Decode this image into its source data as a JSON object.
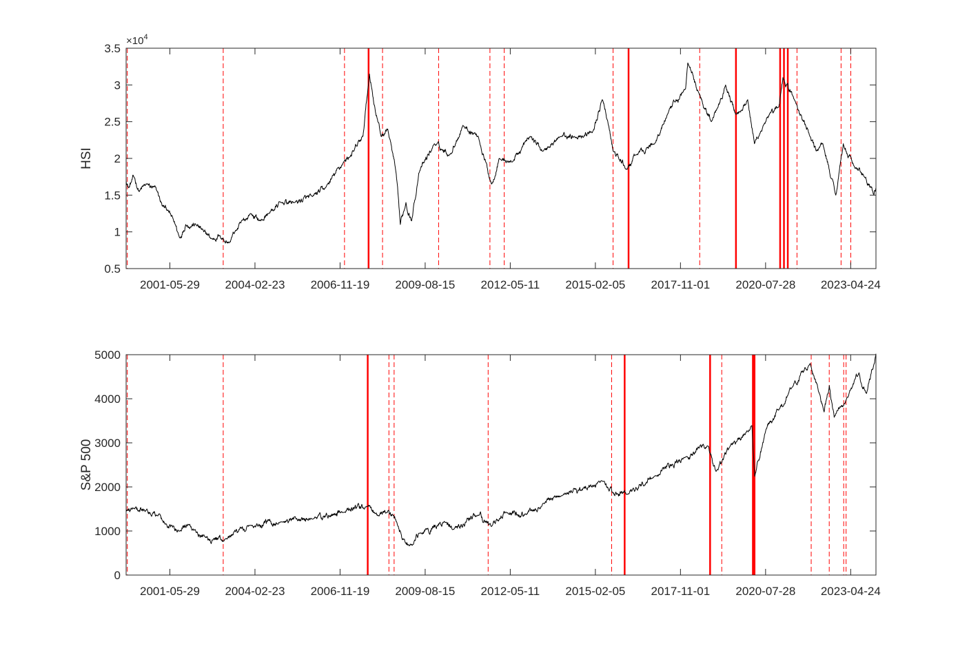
{
  "chart_data": [
    {
      "type": "line",
      "ylabel": "HSI",
      "xlabel": "",
      "title": "",
      "y_exponent_label": "×10",
      "y_exponent_power": "4",
      "ylim": [
        0.5,
        3.5
      ],
      "yticks": [
        "0.5",
        "1",
        "1.5",
        "2",
        "2.5",
        "3",
        "3.5"
      ],
      "ytick_values": [
        0.5,
        1,
        1.5,
        2,
        2.5,
        3,
        3.5
      ],
      "xlim": [
        "2000-01-01",
        "2024-02-15"
      ],
      "xticks": [
        "2001-05-29",
        "2004-02-23",
        "2006-11-19",
        "2009-08-15",
        "2012-05-11",
        "2015-02-05",
        "2017-11-01",
        "2020-07-28",
        "2023-04-24"
      ],
      "grid": false,
      "line_color": "#000000",
      "changepoint_color": "#ff0000",
      "series": [
        {
          "x": [
            "2000-01-01",
            "2000-02-01",
            "2000-04-01",
            "2000-06-01",
            "2000-09-01",
            "2001-01-01",
            "2001-03-01",
            "2001-05-01",
            "2001-08-01",
            "2001-09-20",
            "2001-12-01",
            "2002-04-01",
            "2002-07-01",
            "2002-10-10",
            "2003-01-01",
            "2003-04-25",
            "2003-07-01",
            "2003-12-31",
            "2004-05-01",
            "2004-08-01",
            "2004-12-31",
            "2005-06-01",
            "2005-12-31",
            "2006-06-01",
            "2006-12-31",
            "2007-05-01",
            "2007-08-15",
            "2007-10-30",
            "2008-01-01",
            "2008-03-15",
            "2008-06-01",
            "2008-09-01",
            "2008-10-27",
            "2009-01-01",
            "2009-03-09",
            "2009-06-01",
            "2009-12-01",
            "2010-06-01",
            "2010-11-01",
            "2011-05-01",
            "2011-10-04",
            "2012-01-01",
            "2012-06-01",
            "2013-01-01",
            "2013-06-01",
            "2014-01-01",
            "2014-06-01",
            "2014-12-31",
            "2015-04-28",
            "2015-07-01",
            "2015-09-01",
            "2016-02-12",
            "2016-06-01",
            "2016-12-31",
            "2017-06-01",
            "2017-12-31",
            "2018-01-26",
            "2018-06-01",
            "2018-10-30",
            "2019-04-15",
            "2019-08-15",
            "2019-12-31",
            "2020-03-19",
            "2020-07-01",
            "2020-12-31",
            "2021-02-17",
            "2021-07-01",
            "2021-12-31",
            "2022-03-15",
            "2022-06-01",
            "2022-10-31",
            "2023-01-27",
            "2023-06-01",
            "2023-10-01",
            "2024-01-22",
            "2024-02-15"
          ],
          "values": [
            1.7,
            1.6,
            1.75,
            1.55,
            1.65,
            1.55,
            1.35,
            1.3,
            1.1,
            0.92,
            1.1,
            1.1,
            1.0,
            0.9,
            0.95,
            0.85,
            1.0,
            1.25,
            1.15,
            1.25,
            1.4,
            1.4,
            1.48,
            1.6,
            1.95,
            2.1,
            2.3,
            3.15,
            2.7,
            2.3,
            2.4,
            1.85,
            1.1,
            1.4,
            1.15,
            1.8,
            2.2,
            2.05,
            2.45,
            2.3,
            1.65,
            2.0,
            1.95,
            2.3,
            2.1,
            2.3,
            2.3,
            2.35,
            2.8,
            2.5,
            2.1,
            1.85,
            2.05,
            2.2,
            2.6,
            2.95,
            3.3,
            2.9,
            2.5,
            3.0,
            2.6,
            2.8,
            2.2,
            2.45,
            2.7,
            3.1,
            2.8,
            2.3,
            2.1,
            2.2,
            1.5,
            2.2,
            1.9,
            1.75,
            1.5,
            1.6
          ]
        }
      ],
      "changepoints_dashed": [
        "2000-01-15",
        "2003-02-15",
        "2007-01-10",
        "2008-04-01",
        "2010-01-20",
        "2011-09-15",
        "2012-03-01",
        "2015-09-01",
        "2018-06-15",
        "2021-08-01",
        "2023-01-01",
        "2023-04-25"
      ],
      "changepoints_solid": [
        "2007-10-20",
        "2016-03-01",
        "2019-08-15",
        "2021-01-15",
        "2021-03-01",
        "2021-04-15"
      ]
    },
    {
      "type": "line",
      "ylabel": "S&P 500",
      "xlabel": "",
      "title": "",
      "ylim": [
        0,
        5000
      ],
      "yticks": [
        "0",
        "1000",
        "2000",
        "3000",
        "4000",
        "5000"
      ],
      "ytick_values": [
        0,
        1000,
        2000,
        3000,
        4000,
        5000
      ],
      "xlim": [
        "2000-01-01",
        "2024-02-15"
      ],
      "xticks": [
        "2001-05-29",
        "2004-02-23",
        "2006-11-19",
        "2009-08-15",
        "2012-05-11",
        "2015-02-05",
        "2017-11-01",
        "2020-07-28",
        "2023-04-24"
      ],
      "grid": false,
      "line_color": "#000000",
      "changepoint_color": "#ff0000",
      "series": [
        {
          "x": [
            "2000-01-01",
            "2000-03-24",
            "2000-09-01",
            "2001-01-01",
            "2001-04-04",
            "2001-09-21",
            "2002-01-01",
            "2002-07-23",
            "2002-10-09",
            "2003-03-11",
            "2004-01-01",
            "2005-01-01",
            "2006-01-01",
            "2007-01-01",
            "2007-10-09",
            "2008-01-01",
            "2008-05-19",
            "2008-09-15",
            "2008-11-20",
            "2009-03-09",
            "2009-06-01",
            "2010-04-23",
            "2010-07-02",
            "2011-04-29",
            "2011-10-03",
            "2012-04-01",
            "2012-11-15",
            "2013-06-01",
            "2014-01-01",
            "2015-05-21",
            "2015-08-25",
            "2016-02-11",
            "2016-12-31",
            "2017-12-31",
            "2018-09-20",
            "2018-12-24",
            "2019-06-01",
            "2020-02-19",
            "2020-03-23",
            "2020-08-01",
            "2021-01-01",
            "2021-06-01",
            "2022-01-03",
            "2022-06-16",
            "2022-08-16",
            "2022-10-12",
            "2023-03-01",
            "2023-07-31",
            "2023-10-27",
            "2024-02-15"
          ],
          "values": [
            1450,
            1520,
            1500,
            1350,
            1150,
            1000,
            1150,
            850,
            800,
            820,
            1130,
            1210,
            1270,
            1420,
            1560,
            1400,
            1420,
            1200,
            800,
            700,
            950,
            1200,
            1030,
            1360,
            1100,
            1410,
            1370,
            1630,
            1800,
            2130,
            1870,
            1830,
            2240,
            2680,
            2930,
            2350,
            2900,
            3390,
            2240,
            3300,
            3750,
            4250,
            4800,
            3700,
            4300,
            3580,
            3970,
            4590,
            4120,
            5020
          ]
        }
      ],
      "changepoints_dashed": [
        "2000-01-15",
        "2003-02-15",
        "2008-06-15",
        "2008-08-15",
        "2011-08-25",
        "2015-08-15",
        "2019-03-01",
        "2022-01-15",
        "2022-08-15",
        "2023-02-01",
        "2023-03-01"
      ],
      "changepoints_solid": [
        "2007-10-10",
        "2016-01-15",
        "2018-10-15",
        "2020-03-01",
        "2020-03-10",
        "2020-03-20"
      ]
    }
  ]
}
